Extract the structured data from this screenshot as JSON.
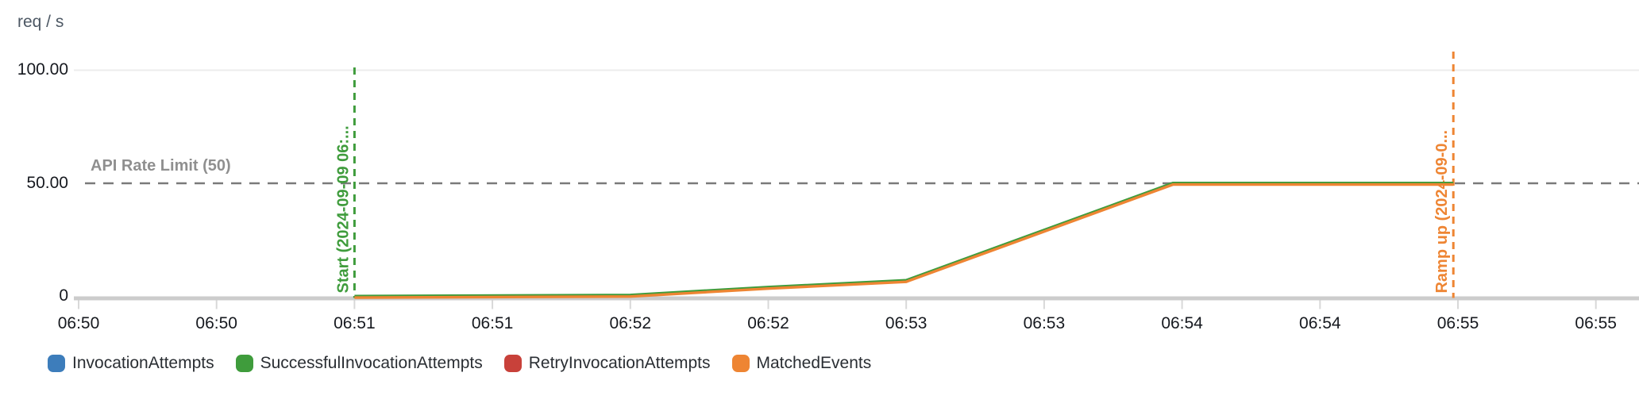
{
  "chart_data": {
    "type": "line",
    "title": "",
    "ylabel": "req / s",
    "grid": "horizontal-only",
    "y_axis": {
      "min": 0,
      "max": 100,
      "ticks": [
        {
          "label": "100.00",
          "value": 100
        },
        {
          "label": "50.00",
          "value": 50
        },
        {
          "label": "0",
          "value": 0
        }
      ]
    },
    "x_axis": {
      "tick_interval_seconds": 30,
      "tick_labels": [
        "06:50",
        "06:50",
        "06:51",
        "06:51",
        "06:52",
        "06:52",
        "06:53",
        "06:53",
        "06:54",
        "06:54",
        "06:55",
        "06:55"
      ]
    },
    "series": [
      {
        "name": "SuccessfulInvocationAttempts",
        "color": "#3f9c3c",
        "points": [
          {
            "t": 60,
            "v": 0
          },
          {
            "t": 120,
            "v": 0.5
          },
          {
            "t": 150,
            "v": 4
          },
          {
            "t": 180,
            "v": 7
          },
          {
            "t": 238,
            "v": 50
          },
          {
            "t": 299,
            "v": 50
          }
        ]
      },
      {
        "name": "MatchedEvents",
        "color": "#ee8533",
        "points": [
          {
            "t": 60,
            "v": 0
          },
          {
            "t": 120,
            "v": 0.5
          },
          {
            "t": 150,
            "v": 4
          },
          {
            "t": 180,
            "v": 7
          },
          {
            "t": 238,
            "v": 50
          },
          {
            "t": 299,
            "v": 50
          }
        ]
      }
    ],
    "annotations": {
      "hline": {
        "label": "API Rate Limit (50)",
        "value": 50,
        "color": "#7a7a7a"
      },
      "vlines": [
        {
          "label": "Start (2024-09-09 06:...",
          "t": 60,
          "color": "#3f9c3c",
          "top_y": 85
        },
        {
          "label": "Ramp up (2024-09-0...",
          "t": 299,
          "color": "#ee8533",
          "top_y": 65
        }
      ]
    },
    "legend": [
      {
        "label": "InvocationAttempts",
        "color": "#3d7dbb"
      },
      {
        "label": "SuccessfulInvocationAttempts",
        "color": "#3f9c3c"
      },
      {
        "label": "RetryInvocationAttempts",
        "color": "#c8413a"
      },
      {
        "label": "MatchedEvents",
        "color": "#ee8533"
      }
    ],
    "style_colors": {
      "gridline": "#ececec",
      "axis_line": "#cccccc",
      "tick_mark": "#d8d8d8",
      "tick_text": "#16191f",
      "axis_title_text": "#4d5864",
      "limit_label_text": "#8f8f8f"
    }
  }
}
